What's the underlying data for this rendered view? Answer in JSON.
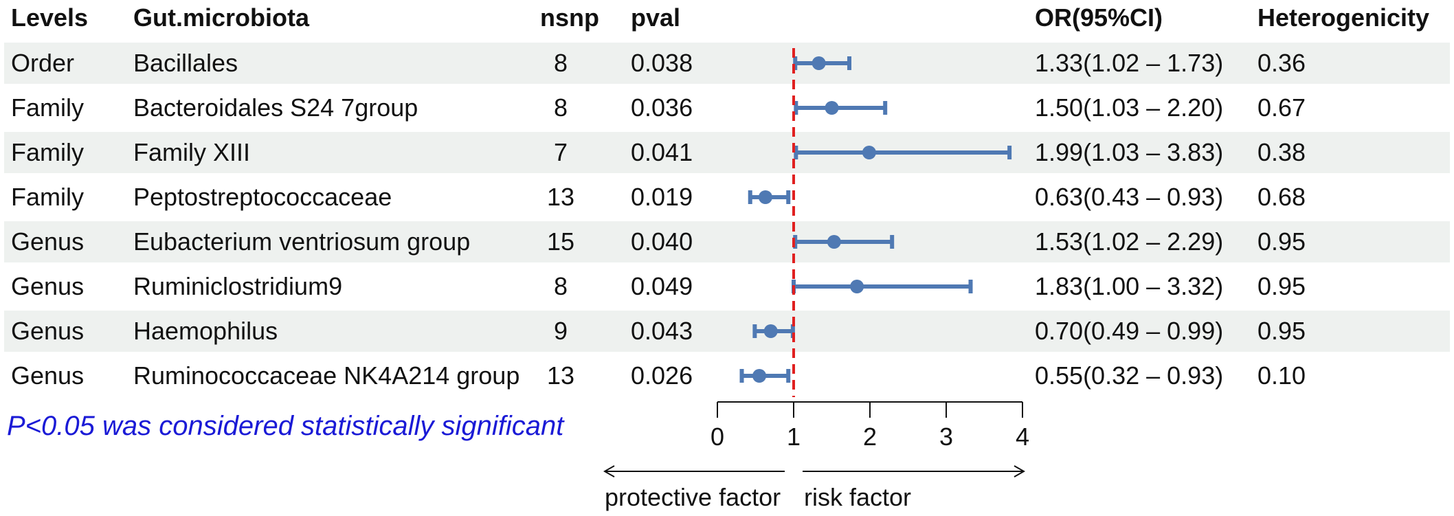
{
  "headers": {
    "levels": "Levels",
    "taxon": "Gut.microbiota",
    "nsnp": "nsnp",
    "pval": "pval",
    "or": "OR(95%CI)",
    "heterogeneity": "Heterogenicity"
  },
  "rows": [
    {
      "level": "Order",
      "taxon": "Bacillales",
      "nsnp": "8",
      "pval": "0.038",
      "or_text": "1.33(1.02 – 1.73)",
      "het": "0.36"
    },
    {
      "level": "Family",
      "taxon": "Bacteroidales S24 7group",
      "nsnp": "8",
      "pval": "0.036",
      "or_text": "1.50(1.03 – 2.20)",
      "het": "0.67"
    },
    {
      "level": "Family",
      "taxon": "Family XIII",
      "nsnp": "7",
      "pval": "0.041",
      "or_text": "1.99(1.03 – 3.83)",
      "het": "0.38"
    },
    {
      "level": "Family",
      "taxon": "Peptostreptococcaceae",
      "nsnp": "13",
      "pval": "0.019",
      "or_text": "0.63(0.43 – 0.93)",
      "het": "0.68"
    },
    {
      "level": "Genus",
      "taxon": "Eubacterium ventriosum group",
      "nsnp": "15",
      "pval": "0.040",
      "or_text": "1.53(1.02 – 2.29)",
      "het": "0.95"
    },
    {
      "level": "Genus",
      "taxon": "Ruminiclostridium9",
      "nsnp": "8",
      "pval": "0.049",
      "or_text": "1.83(1.00 – 3.32)",
      "het": "0.95"
    },
    {
      "level": "Genus",
      "taxon": "Haemophilus",
      "nsnp": "9",
      "pval": "0.043",
      "or_text": "0.70(0.49 – 0.99)",
      "het": "0.95"
    },
    {
      "level": "Genus",
      "taxon": "Ruminococcaceae NK4A214 group",
      "nsnp": "13",
      "pval": "0.026",
      "or_text": "0.55(0.32 – 0.93)",
      "het": "0.10"
    }
  ],
  "note": "P<0.05 was considered statistically significant",
  "chart_data": {
    "type": "forest",
    "title": "",
    "xlabel": "",
    "xlim": [
      0,
      4
    ],
    "xticks": [
      0,
      1,
      2,
      3,
      4
    ],
    "reference_line": 1,
    "categories": [
      "Bacillales",
      "Bacteroidales S24 7group",
      "Family XIII",
      "Peptostreptococcaceae",
      "Eubacterium ventriosum group",
      "Ruminiclostridium9",
      "Haemophilus",
      "Ruminococcaceae NK4A214 group"
    ],
    "or": [
      1.33,
      1.5,
      1.99,
      0.63,
      1.53,
      1.83,
      0.7,
      0.55
    ],
    "lower": [
      1.02,
      1.03,
      1.03,
      0.43,
      1.02,
      1.0,
      0.49,
      0.32
    ],
    "upper": [
      1.73,
      2.2,
      3.83,
      0.93,
      2.29,
      3.32,
      0.99,
      0.93
    ],
    "direction_labels": {
      "left": "protective factor",
      "right": "risk factor"
    },
    "colors": {
      "point": "#4f79b3",
      "reference": "#e02020",
      "axis": "#111111"
    }
  }
}
